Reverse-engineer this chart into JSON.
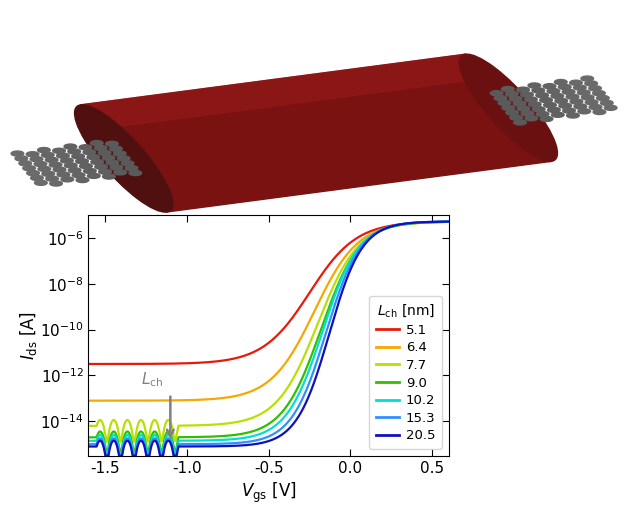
{
  "xlabel": "$V_{\\mathrm{gs}}$ [V]",
  "ylabel": "$I_{\\mathrm{ds}}$ [A]",
  "xlim": [
    -1.6,
    0.6
  ],
  "ylim_log": [
    -15.5,
    -5
  ],
  "legend_title": "$L_{\\mathrm{ch}}$ [nm]",
  "series": [
    {
      "label": "5.1",
      "color": "#e8190a",
      "off_log": -11.5,
      "on_log": -5.28,
      "v_half": -0.25,
      "steepness": 7.0
    },
    {
      "label": "6.4",
      "color": "#f5a800",
      "off_log": -13.1,
      "on_log": -5.28,
      "v_half": -0.22,
      "steepness": 7.5
    },
    {
      "label": "7.7",
      "color": "#b8e000",
      "off_log": -14.2,
      "on_log": -5.28,
      "v_half": -0.2,
      "steepness": 8.0
    },
    {
      "label": "9.0",
      "color": "#30c000",
      "off_log": -14.7,
      "on_log": -5.28,
      "v_half": -0.18,
      "steepness": 8.5
    },
    {
      "label": "10.2",
      "color": "#00e0d0",
      "off_log": -14.85,
      "on_log": -5.28,
      "v_half": -0.17,
      "steepness": 9.0
    },
    {
      "label": "15.3",
      "color": "#3090ff",
      "off_log": -15.0,
      "on_log": -5.28,
      "v_half": -0.15,
      "steepness": 9.5
    },
    {
      "label": "20.5",
      "color": "#1010c0",
      "off_log": -15.1,
      "on_log": -5.28,
      "v_half": -0.13,
      "steepness": 10.0
    }
  ],
  "cylinder_color": "#7a1212",
  "cylinder_dark": "#501010",
  "cylinder_light": "#952020",
  "cnt_color": "#555555"
}
